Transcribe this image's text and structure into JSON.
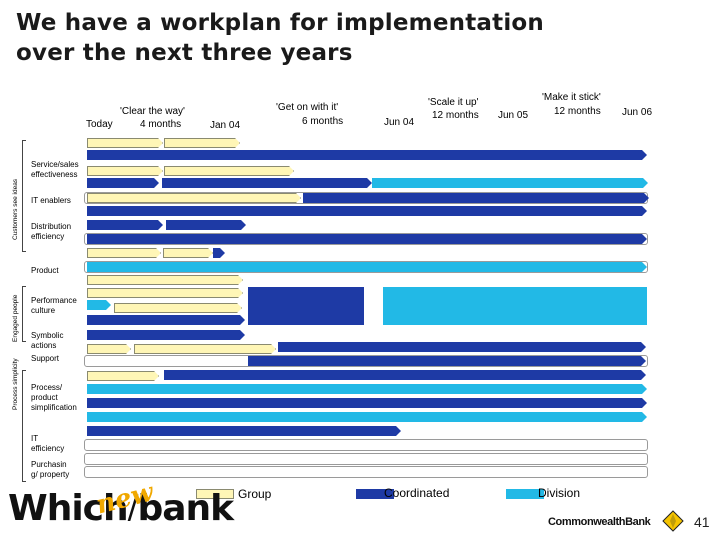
{
  "title_line1": "We have a workplan for implementation",
  "title_line2": "over the next three years",
  "timeline": {
    "today": "Today",
    "clear_the_way": "'Clear the way'",
    "clear_duration": "4 months",
    "jan04": "Jan 04",
    "get_on_with_it": "'Get on with it'",
    "get_duration": "6 months",
    "jun04": "Jun 04",
    "scale_it_up": "'Scale it up'",
    "scale_duration": "12 months",
    "jun05": "Jun 05",
    "make_it_stick": "'Make it stick'",
    "make_duration": "12 months",
    "jun06": "Jun 06"
  },
  "groups": {
    "customers": "Customers see ideas",
    "engaged": "Engaged people",
    "simplicity": "Process simplicity"
  },
  "rows": {
    "service_sales": "Service/sales effectiveness",
    "it_enablers": "IT enablers",
    "distribution": "Distribution efficiency",
    "product": "Product",
    "performance": "Performance culture",
    "symbolic": "Symbolic actions",
    "support": "Support",
    "process_simplification": "Process/ product simplification",
    "it_efficiency": "IT efficiency",
    "purchasing": "Purchasin g/ property"
  },
  "legend": {
    "group": "Group",
    "coordinated": "Coordinated",
    "division": "Division"
  },
  "colors": {
    "group": "#fff6b6",
    "coordinated": "#1e3aa5",
    "division": "#22b9e6"
  },
  "footer": {
    "logo_which": "Which",
    "logo_bank": "bank",
    "logo_new": "new",
    "bank_name": "CommonwealthBank",
    "page_number": "41"
  }
}
